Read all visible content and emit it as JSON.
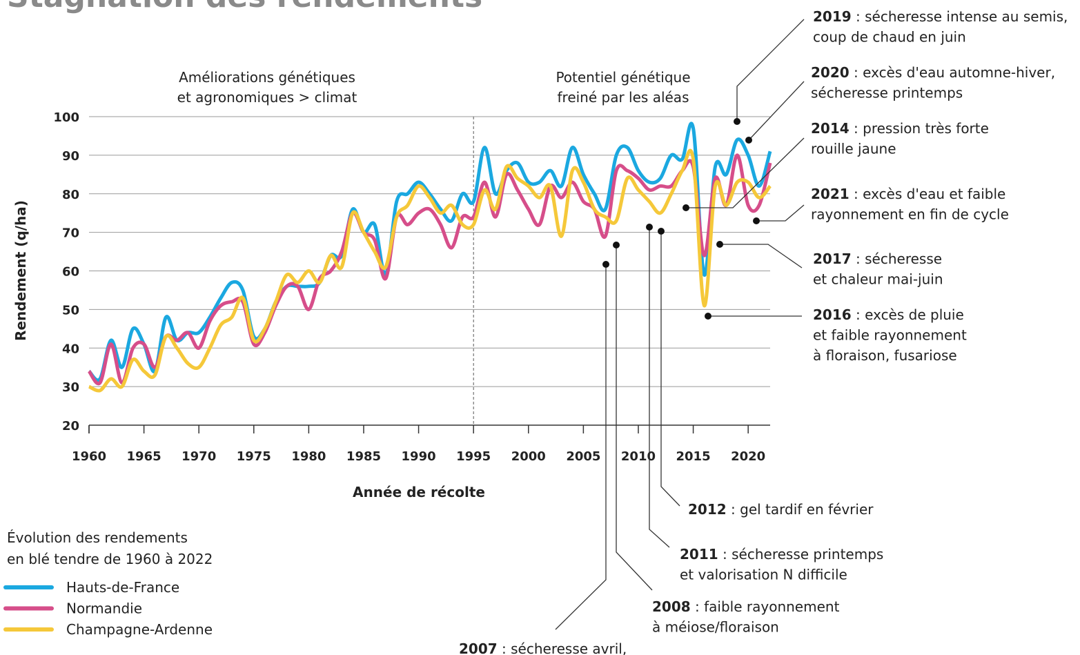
{
  "chart_data": {
    "type": "line",
    "title": "Stagnation des rendements",
    "xlabel": "Année de récolte",
    "ylabel": "Rendement (q/ha)",
    "x": [
      1960,
      1961,
      1962,
      1963,
      1964,
      1965,
      1966,
      1967,
      1968,
      1969,
      1970,
      1971,
      1972,
      1973,
      1974,
      1975,
      1976,
      1977,
      1978,
      1979,
      1980,
      1981,
      1982,
      1983,
      1984,
      1985,
      1986,
      1987,
      1988,
      1989,
      1990,
      1991,
      1992,
      1993,
      1994,
      1995,
      1996,
      1997,
      1998,
      1999,
      2000,
      2001,
      2002,
      2003,
      2004,
      2005,
      2006,
      2007,
      2008,
      2009,
      2010,
      2011,
      2012,
      2013,
      2014,
      2015,
      2016,
      2017,
      2018,
      2019,
      2020,
      2021,
      2022
    ],
    "series": [
      {
        "name": "Hauts-de-France",
        "color": "#1ba8e0",
        "values": [
          34,
          32,
          42,
          35,
          45,
          41,
          34,
          48,
          42,
          44,
          44,
          48,
          53,
          57,
          55,
          43,
          45,
          52,
          56,
          56,
          56,
          57,
          64,
          64,
          76,
          70,
          72,
          59,
          78,
          80,
          83,
          80,
          76,
          73,
          80,
          78,
          92,
          80,
          86,
          88,
          83,
          83,
          86,
          82,
          92,
          85,
          80,
          76,
          90,
          92,
          86,
          83,
          84,
          90,
          89,
          97,
          59,
          87,
          85,
          94,
          90,
          82,
          91
        ]
      },
      {
        "name": "Normandie",
        "color": "#d64e8a",
        "values": [
          34,
          31,
          41,
          31,
          40,
          41,
          35,
          43,
          42,
          44,
          40,
          47,
          51,
          52,
          52,
          41,
          44,
          51,
          56,
          56,
          50,
          58,
          60,
          65,
          75,
          70,
          68,
          58,
          74,
          72,
          75,
          76,
          72,
          66,
          74,
          74,
          83,
          74,
          85,
          81,
          76,
          72,
          82,
          79,
          83,
          78,
          76,
          69,
          86,
          86,
          84,
          81,
          82,
          82,
          86,
          87,
          64,
          84,
          77,
          90,
          77,
          77,
          88
        ]
      },
      {
        "name": "Champagne-Ardenne",
        "color": "#f5c83a",
        "values": [
          30,
          29,
          32,
          30,
          37,
          34,
          33,
          43,
          40,
          36,
          35,
          40,
          46,
          48,
          53,
          42,
          45,
          52,
          59,
          57,
          60,
          57,
          64,
          61,
          75,
          70,
          65,
          61,
          74,
          77,
          82,
          79,
          75,
          77,
          72,
          72,
          81,
          76,
          87,
          84,
          82,
          79,
          82,
          69,
          86,
          83,
          76,
          74,
          73,
          84,
          81,
          78,
          75,
          80,
          86,
          89,
          51,
          82,
          77,
          83,
          83,
          79,
          82
        ]
      }
    ],
    "xlim": [
      1960,
      2022
    ],
    "xticks": [
      1960,
      1965,
      1970,
      1975,
      1980,
      1985,
      1990,
      1995,
      2000,
      2005,
      2010,
      2015,
      2020
    ],
    "ylim": [
      20,
      100
    ],
    "yticks": [
      20,
      30,
      40,
      50,
      60,
      70,
      80,
      90,
      100
    ],
    "grid": true,
    "phase_labels": [
      [
        "Améliorations génétiques",
        "et agronomiques > climat"
      ],
      [
        "Potentiel génétique",
        "freiné par les aléas"
      ]
    ],
    "legend_title": [
      "Évolution des rendements",
      "en blé tendre de 1960 à 2022"
    ],
    "annotations": [
      {
        "year": "2019",
        "text": [
          " : sécheresse intense au semis,",
          "coup de chaud en juin"
        ]
      },
      {
        "year": "2020",
        "text": [
          " : excès d'eau automne-hiver,",
          "sécheresse printemps"
        ]
      },
      {
        "year": "2014",
        "text": [
          " : pression très forte",
          "rouille jaune"
        ]
      },
      {
        "year": "2021",
        "text": [
          " : excès d'eau et faible",
          "rayonnement en fin de cycle"
        ]
      },
      {
        "year": "2017",
        "text": [
          " : sécheresse",
          "et chaleur mai-juin"
        ]
      },
      {
        "year": "2016",
        "text": [
          " : excès de pluie",
          "et faible rayonnement",
          "à floraison, fusariose"
        ]
      },
      {
        "year": "2012",
        "text": [
          " : gel tardif en février"
        ]
      },
      {
        "year": "2011",
        "text": [
          " : sécheresse printemps",
          "et valorisation N difficile"
        ]
      },
      {
        "year": "2008",
        "text": [
          " : faible rayonnement",
          "à méiose/floraison"
        ]
      },
      {
        "year": "2007",
        "text": [
          " : sécheresse avril,"
        ]
      }
    ]
  }
}
